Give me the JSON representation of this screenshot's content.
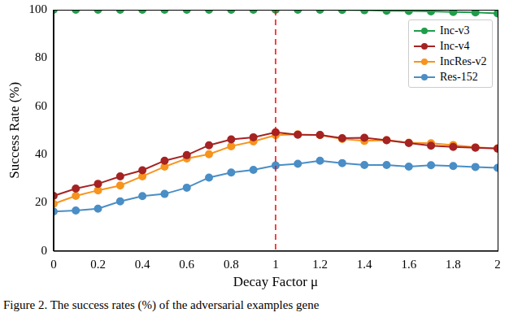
{
  "chart_data": {
    "type": "line",
    "x_label": "Decay Factor μ",
    "y_label": "Success Rate (%)",
    "caption": "Figure 2. The success rates (%) of the adversarial examples gene",
    "x": [
      0,
      0.1,
      0.2,
      0.3,
      0.4,
      0.5,
      0.6,
      0.7,
      0.8,
      0.9,
      1,
      1.1,
      1.2,
      1.3,
      1.4,
      1.5,
      1.6,
      1.7,
      1.8,
      1.9,
      2
    ],
    "series": [
      {
        "name": "Inc-v3",
        "color": "#1f9e4a",
        "marker": "circle",
        "values": [
          100,
          100,
          100,
          100,
          100,
          100,
          100,
          100,
          100,
          100,
          100,
          100,
          100,
          99.9,
          99.8,
          99.6,
          99.5,
          99.3,
          99.1,
          98.9,
          98.5
        ]
      },
      {
        "name": "Inc-v4",
        "color": "#a52323",
        "marker": "circle",
        "values": [
          22.8,
          25.8,
          27.8,
          30.9,
          33.4,
          37.4,
          39.7,
          43.8,
          46.2,
          47.1,
          49.2,
          48.2,
          48.1,
          46.7,
          46.9,
          45.9,
          44.7,
          43.6,
          43.1,
          42.8,
          42.4
        ]
      },
      {
        "name": "IncRes-v2",
        "color": "#f7941d",
        "marker": "circle",
        "values": [
          19.5,
          22.8,
          25.1,
          27.1,
          30.9,
          34.9,
          38.3,
          40.1,
          43.4,
          45.4,
          48.0,
          48.3,
          48.0,
          46.4,
          45.6,
          45.9,
          44.9,
          44.6,
          43.9,
          42.9,
          42.5
        ]
      },
      {
        "name": "Res-152",
        "color": "#4a8ec6",
        "marker": "circle",
        "values": [
          16.3,
          16.7,
          17.5,
          20.5,
          22.7,
          23.6,
          26.2,
          30.4,
          32.5,
          33.6,
          35.4,
          36.1,
          37.4,
          36.4,
          35.6,
          35.6,
          34.9,
          35.5,
          35.2,
          34.8,
          34.4
        ]
      }
    ],
    "annotations": [
      {
        "type": "vline",
        "x": 1,
        "color": "#ff0000",
        "line_style": "dashed"
      }
    ],
    "xlim": [
      0,
      2
    ],
    "xticks": [
      0,
      0.2,
      0.4,
      0.6,
      0.8,
      1,
      1.2,
      1.4,
      1.6,
      1.8,
      2
    ],
    "ylim": [
      0,
      100
    ],
    "yticks": [
      0,
      20,
      40,
      60,
      80,
      100
    ],
    "grid": false,
    "legend": "upper right"
  }
}
